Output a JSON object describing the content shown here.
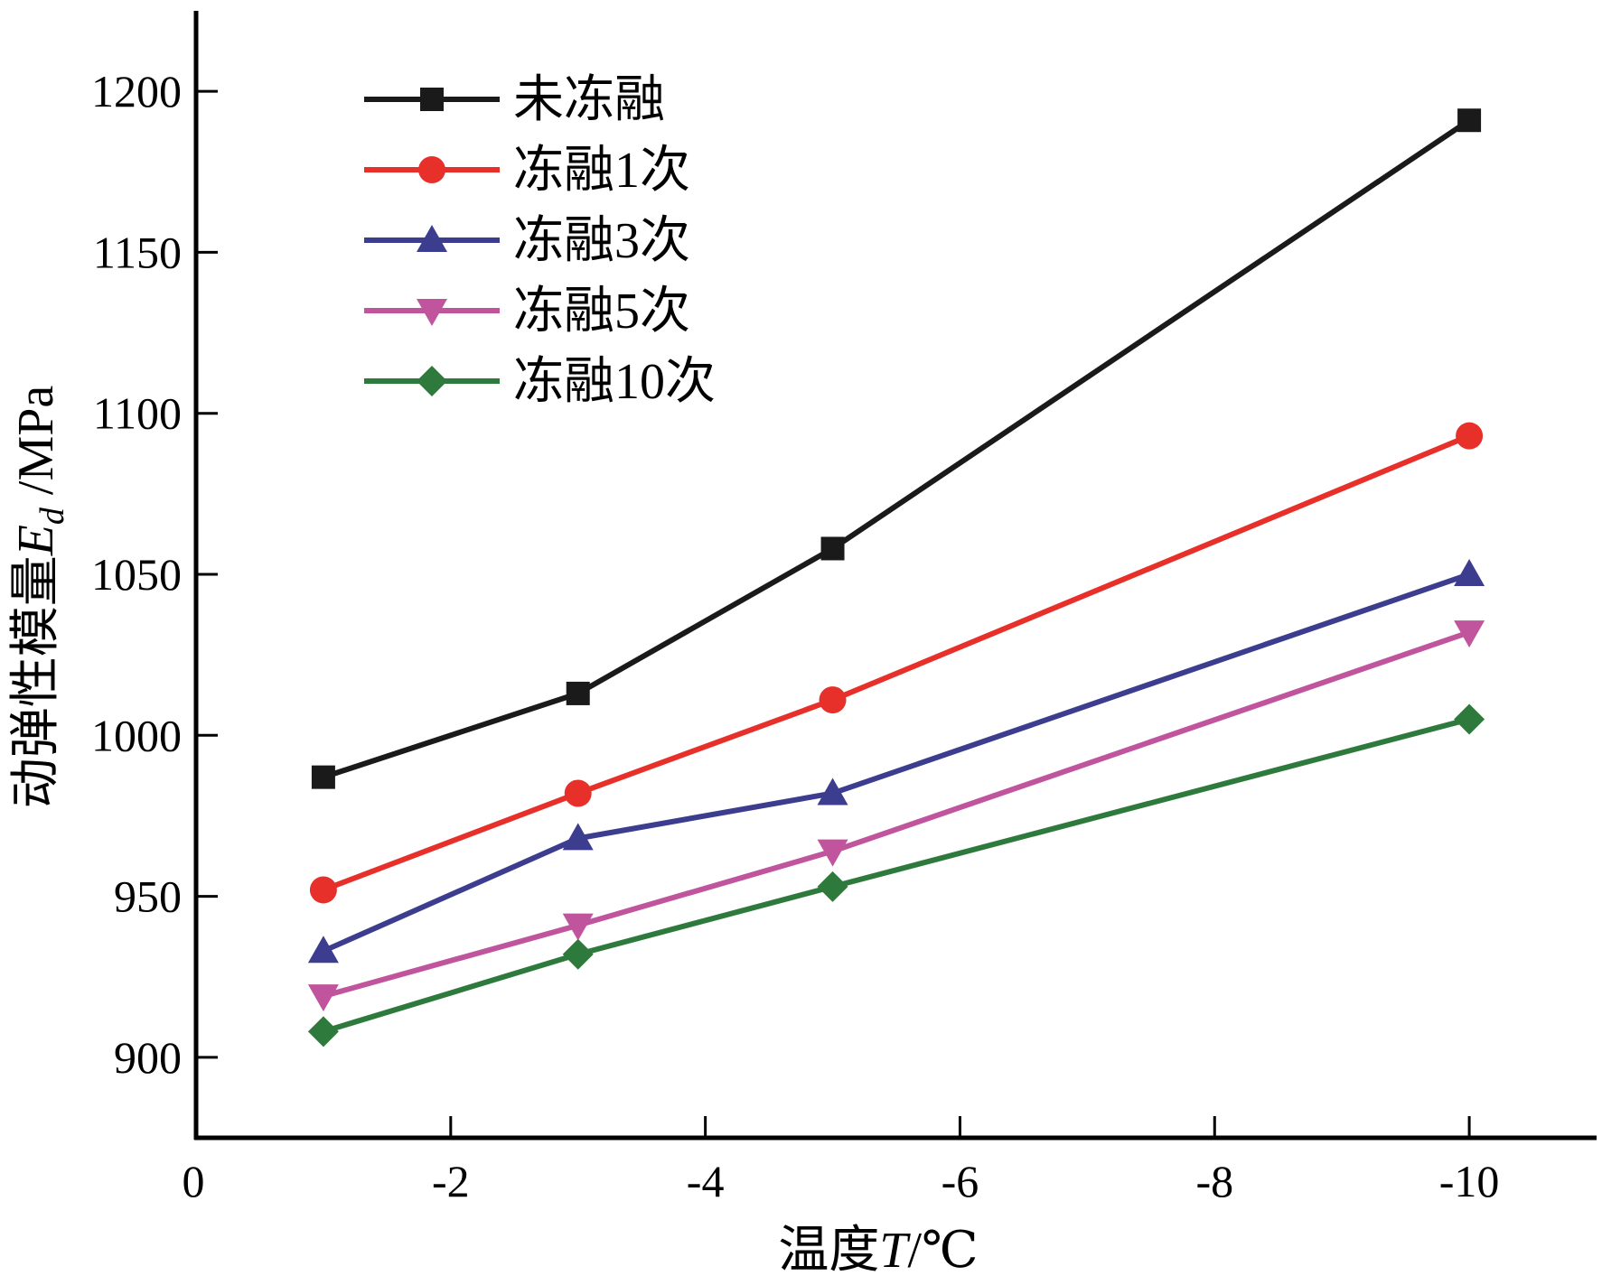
{
  "chart_data": {
    "type": "line",
    "title": "",
    "xlabel": {
      "prefix": "温度",
      "variable": "T",
      "unit": "/℃"
    },
    "ylabel": {
      "prefix": "动弹性模量",
      "variable": "E",
      "subscript": "d",
      "unit": " /MPa"
    },
    "x_reversed": true,
    "xlim": [
      0,
      -11
    ],
    "ylim": [
      875,
      1225
    ],
    "x_ticks": [
      0,
      -2,
      -4,
      -6,
      -8,
      -10
    ],
    "x_tick_labels": [
      "0",
      "-2",
      "-4",
      "-6",
      "-8",
      "-10"
    ],
    "y_ticks": [
      900,
      950,
      1000,
      1050,
      1100,
      1150,
      1200
    ],
    "y_tick_labels": [
      "900",
      "950",
      "1000",
      "1050",
      "1100",
      "1150",
      "1200"
    ],
    "x": [
      -1,
      -3,
      -5,
      -10
    ],
    "series": [
      {
        "name": "未冻融",
        "marker": "square",
        "color": "#1a1a1a",
        "values": [
          987,
          1013,
          1058,
          1191
        ]
      },
      {
        "name": "冻融1次",
        "marker": "circle",
        "color": "#e8302a",
        "values": [
          952,
          982,
          1011,
          1093
        ]
      },
      {
        "name": "冻融3次",
        "marker": "triangle-up",
        "color": "#3d3d8f",
        "values": [
          933,
          968,
          982,
          1050
        ]
      },
      {
        "name": "冻融5次",
        "marker": "triangle-down",
        "color": "#c0559e",
        "values": [
          919,
          941,
          964,
          1032
        ]
      },
      {
        "name": "冻融10次",
        "marker": "diamond",
        "color": "#2e7a3c",
        "values": [
          908,
          932,
          953,
          1005
        ]
      }
    ],
    "legend_position": "top-left",
    "grid": false
  }
}
